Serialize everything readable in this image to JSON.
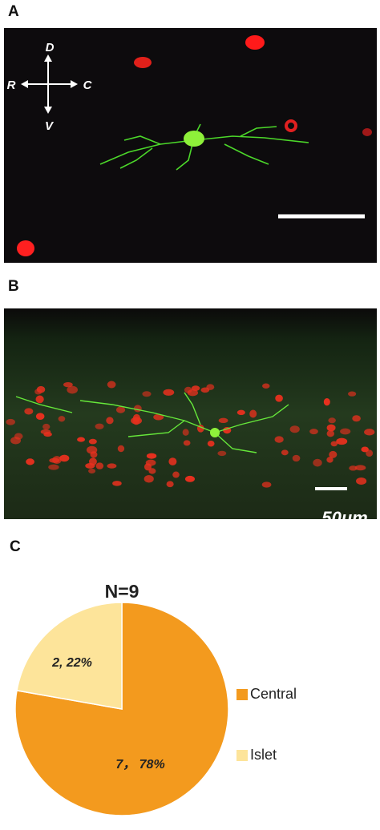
{
  "panel_labels": [
    "A",
    "B",
    "C"
  ],
  "orientation_labels": [
    "D",
    "V",
    "R",
    "C"
  ],
  "scale_bar_label": "50μm",
  "chart_data": {
    "type": "pie",
    "title": "N=9",
    "categories": [
      "Central",
      "Islet"
    ],
    "values": [
      7,
      2
    ],
    "value_labels": [
      "7， 78%",
      "2, 22%"
    ],
    "colors": [
      "#f39a1e",
      "#fde49a"
    ]
  }
}
